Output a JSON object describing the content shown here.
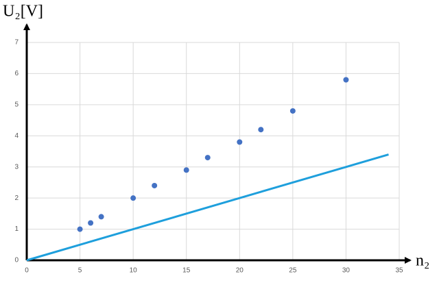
{
  "chart_data": {
    "type": "scatter",
    "x_label": "n₂",
    "y_label": "U₂[V]",
    "xlim": [
      0,
      35
    ],
    "xticks": [
      0,
      5,
      10,
      15,
      20,
      25,
      30,
      35
    ],
    "ylim": [
      0,
      7
    ],
    "yticks": [
      0,
      1,
      2,
      3,
      4,
      5,
      6,
      7
    ],
    "grid": true,
    "series": [
      {
        "type": "scatter",
        "color": "#4472c4",
        "x": [
          5,
          6,
          7,
          10,
          12,
          15,
          17,
          20,
          22,
          25,
          30
        ],
        "values": [
          1,
          1.2,
          1.4,
          2,
          2.4,
          2.9,
          3.3,
          3.8,
          4.2,
          4.8,
          5.8
        ]
      },
      {
        "type": "line",
        "color": "#1e9fdc",
        "x": [
          0,
          34
        ],
        "values": [
          0,
          3.4
        ]
      }
    ]
  }
}
